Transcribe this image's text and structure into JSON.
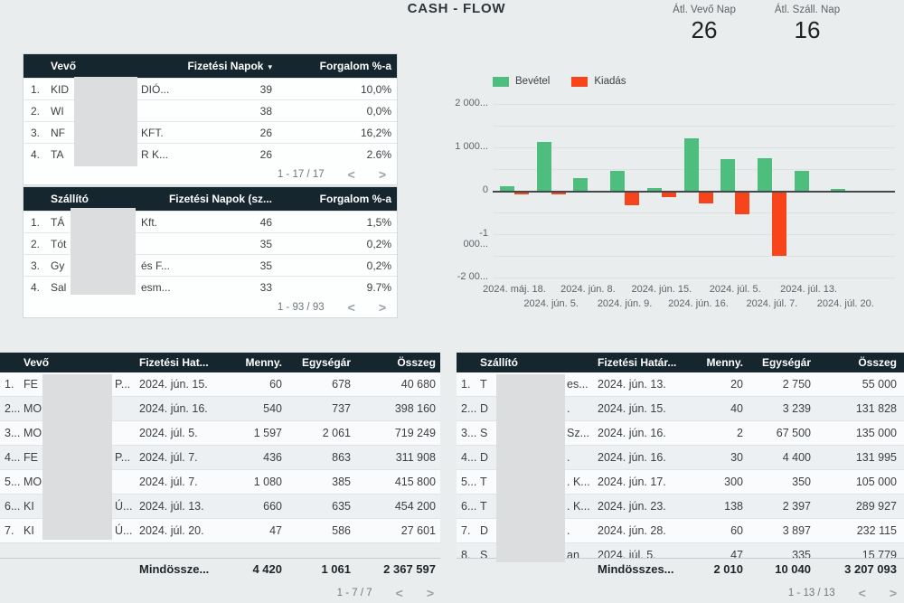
{
  "title": "CASH - FLOW",
  "scorecards": [
    {
      "label": "Átl. Vevő Nap",
      "value": "26"
    },
    {
      "label": "Átl. Száll. Nap",
      "value": "16"
    }
  ],
  "ui": {
    "sort_arrow": "▾",
    "prev_icon": "<",
    "next_icon": ">"
  },
  "colors": {
    "table_header_bg": "#16262F",
    "positive": "#4DBE7D",
    "negative": "#F8441A",
    "page_bg": "#E9EDEE"
  },
  "chart_data": {
    "type": "bar",
    "title": "",
    "categories": [
      "2024. máj. 18.",
      "2024. jún. 5.",
      "2024. jún. 8.",
      "2024. jún. 9.",
      "2024. jún. 15.",
      "2024. jún. 16.",
      "2024. júl. 5.",
      "2024. júl. 7.",
      "2024. júl. 13.",
      "2024. júl. 20."
    ],
    "series": [
      {
        "name": "Bevétel",
        "color": "#4DBE7D",
        "values": [
          110,
          1130,
          290,
          460,
          70,
          1200,
          720,
          740,
          460,
          40
        ]
      },
      {
        "name": "Kiadás",
        "color": "#F8441A",
        "values": [
          -25,
          -25,
          0,
          -300,
          -100,
          -250,
          -510,
          -1450,
          0,
          0
        ]
      }
    ],
    "ylim": [
      -2000,
      2000
    ],
    "y_tick_values": [
      2000,
      1000,
      0,
      -1000,
      -2000
    ],
    "y_tick_labels": [
      "2 000...",
      "1 000...",
      "0",
      "-1 000...",
      "-2 00..."
    ],
    "grid": true,
    "legend_position": "top"
  },
  "vevo_days_table": {
    "headers": {
      "name": "Vevő",
      "days": "Fizetési Napok",
      "pct": "Forgalom %-a"
    },
    "rows": [
      {
        "num": "1.",
        "name_left": "KID",
        "name_right": "DIÓ...",
        "days": "39",
        "pct": "10,0%"
      },
      {
        "num": "2.",
        "name_left": "WI",
        "name_right": "",
        "days": "38",
        "pct": "0,0%"
      },
      {
        "num": "3.",
        "name_left": "NF",
        "name_right": "KFT.",
        "days": "26",
        "pct": "16,2%"
      },
      {
        "num": "4.",
        "name_left": "TA",
        "name_right": "R K...",
        "days": "26",
        "pct": "2.6%"
      }
    ],
    "pagination": "1 - 17 / 17"
  },
  "szallito_days_table": {
    "headers": {
      "name": "Szállító",
      "days": "Fizetési Napok (sz...",
      "pct": "Forgalom %-a"
    },
    "rows": [
      {
        "num": "1.",
        "name_left": "TÁ",
        "name_right": "Kft.",
        "days": "46",
        "pct": "1,5%"
      },
      {
        "num": "2.",
        "name_left": "Tót",
        "name_right": "",
        "days": "35",
        "pct": "0,2%"
      },
      {
        "num": "3.",
        "name_left": "Gy",
        "name_right": "és F...",
        "days": "35",
        "pct": "0,2%"
      },
      {
        "num": "4.",
        "name_left": "Sal",
        "name_right": "esm...",
        "days": "33",
        "pct": "9.7%"
      }
    ],
    "pagination": "1 - 93 / 93"
  },
  "vevo_detail_table": {
    "headers": {
      "name": "Vevő",
      "date": "Fizetési Hat...",
      "qty": "Menny.",
      "unit": "Egységár",
      "total": "Összeg"
    },
    "rows": [
      {
        "num": "1.",
        "name_left": "FE",
        "name_right": "P...",
        "date": "2024. jún. 15.",
        "qty": "60",
        "unit": "678",
        "total": "40 680"
      },
      {
        "num": "2...",
        "name_left": "MO",
        "name_right": "",
        "date": "2024. jún. 16.",
        "qty": "540",
        "unit": "737",
        "total": "398 160"
      },
      {
        "num": "3...",
        "name_left": "MO",
        "name_right": "",
        "date": "2024. júl. 5.",
        "qty": "1 597",
        "unit": "2 061",
        "total": "719 249"
      },
      {
        "num": "4...",
        "name_left": "FE",
        "name_right": "P...",
        "date": "2024. júl. 7.",
        "qty": "436",
        "unit": "863",
        "total": "311 908"
      },
      {
        "num": "5...",
        "name_left": "MO",
        "name_right": "",
        "date": "2024. júl. 7.",
        "qty": "1 080",
        "unit": "385",
        "total": "415 800"
      },
      {
        "num": "6...",
        "name_left": "KI",
        "name_right": "Ú...",
        "date": "2024. júl. 13.",
        "qty": "660",
        "unit": "635",
        "total": "454 200"
      },
      {
        "num": "7.",
        "name_left": "KI",
        "name_right": "Ú...",
        "date": "2024. júl. 20.",
        "qty": "47",
        "unit": "586",
        "total": "27 601"
      }
    ],
    "summary": {
      "label": "Mindössze...",
      "qty": "4 420",
      "unit": "1 061",
      "total": "2 367 597"
    },
    "pagination": "1 - 7 / 7"
  },
  "szallito_detail_table": {
    "headers": {
      "name": "Szállító",
      "date": "Fizetési Határ...",
      "qty": "Menny.",
      "unit": "Egységár",
      "total": "Összeg"
    },
    "rows": [
      {
        "num": "1.",
        "name_left": "T",
        "name_right": "es...",
        "date": "2024. jún. 13.",
        "qty": "20",
        "unit": "2 750",
        "total": "55 000"
      },
      {
        "num": "2...",
        "name_left": "D",
        "name_right": ".",
        "date": "2024. jún. 15.",
        "qty": "40",
        "unit": "3 239",
        "total": "131 828"
      },
      {
        "num": "3...",
        "name_left": "S",
        "name_right": "Sz...",
        "date": "2024. jún. 16.",
        "qty": "2",
        "unit": "67 500",
        "total": "135 000"
      },
      {
        "num": "4...",
        "name_left": "D",
        "name_right": ".",
        "date": "2024. jún. 16.",
        "qty": "30",
        "unit": "4 400",
        "total": "131 995"
      },
      {
        "num": "5...",
        "name_left": "T",
        "name_right": ". K...",
        "date": "2024. jún. 17.",
        "qty": "300",
        "unit": "350",
        "total": "105 000"
      },
      {
        "num": "6...",
        "name_left": "T",
        "name_right": ". K...",
        "date": "2024. jún. 23.",
        "qty": "138",
        "unit": "2 397",
        "total": "289 927"
      },
      {
        "num": "7.",
        "name_left": "D",
        "name_right": ".",
        "date": "2024. jún. 28.",
        "qty": "60",
        "unit": "3 897",
        "total": "232 115"
      },
      {
        "num": "8.",
        "name_left": "S",
        "name_right": "an",
        "date": "2024. júl. 5.",
        "qty": "47",
        "unit": "335",
        "total": "15 779"
      }
    ],
    "summary": {
      "label": "Mindösszes...",
      "qty": "2 010",
      "unit": "10 040",
      "total": "3 207 093"
    },
    "pagination": "1 - 13 / 13"
  }
}
